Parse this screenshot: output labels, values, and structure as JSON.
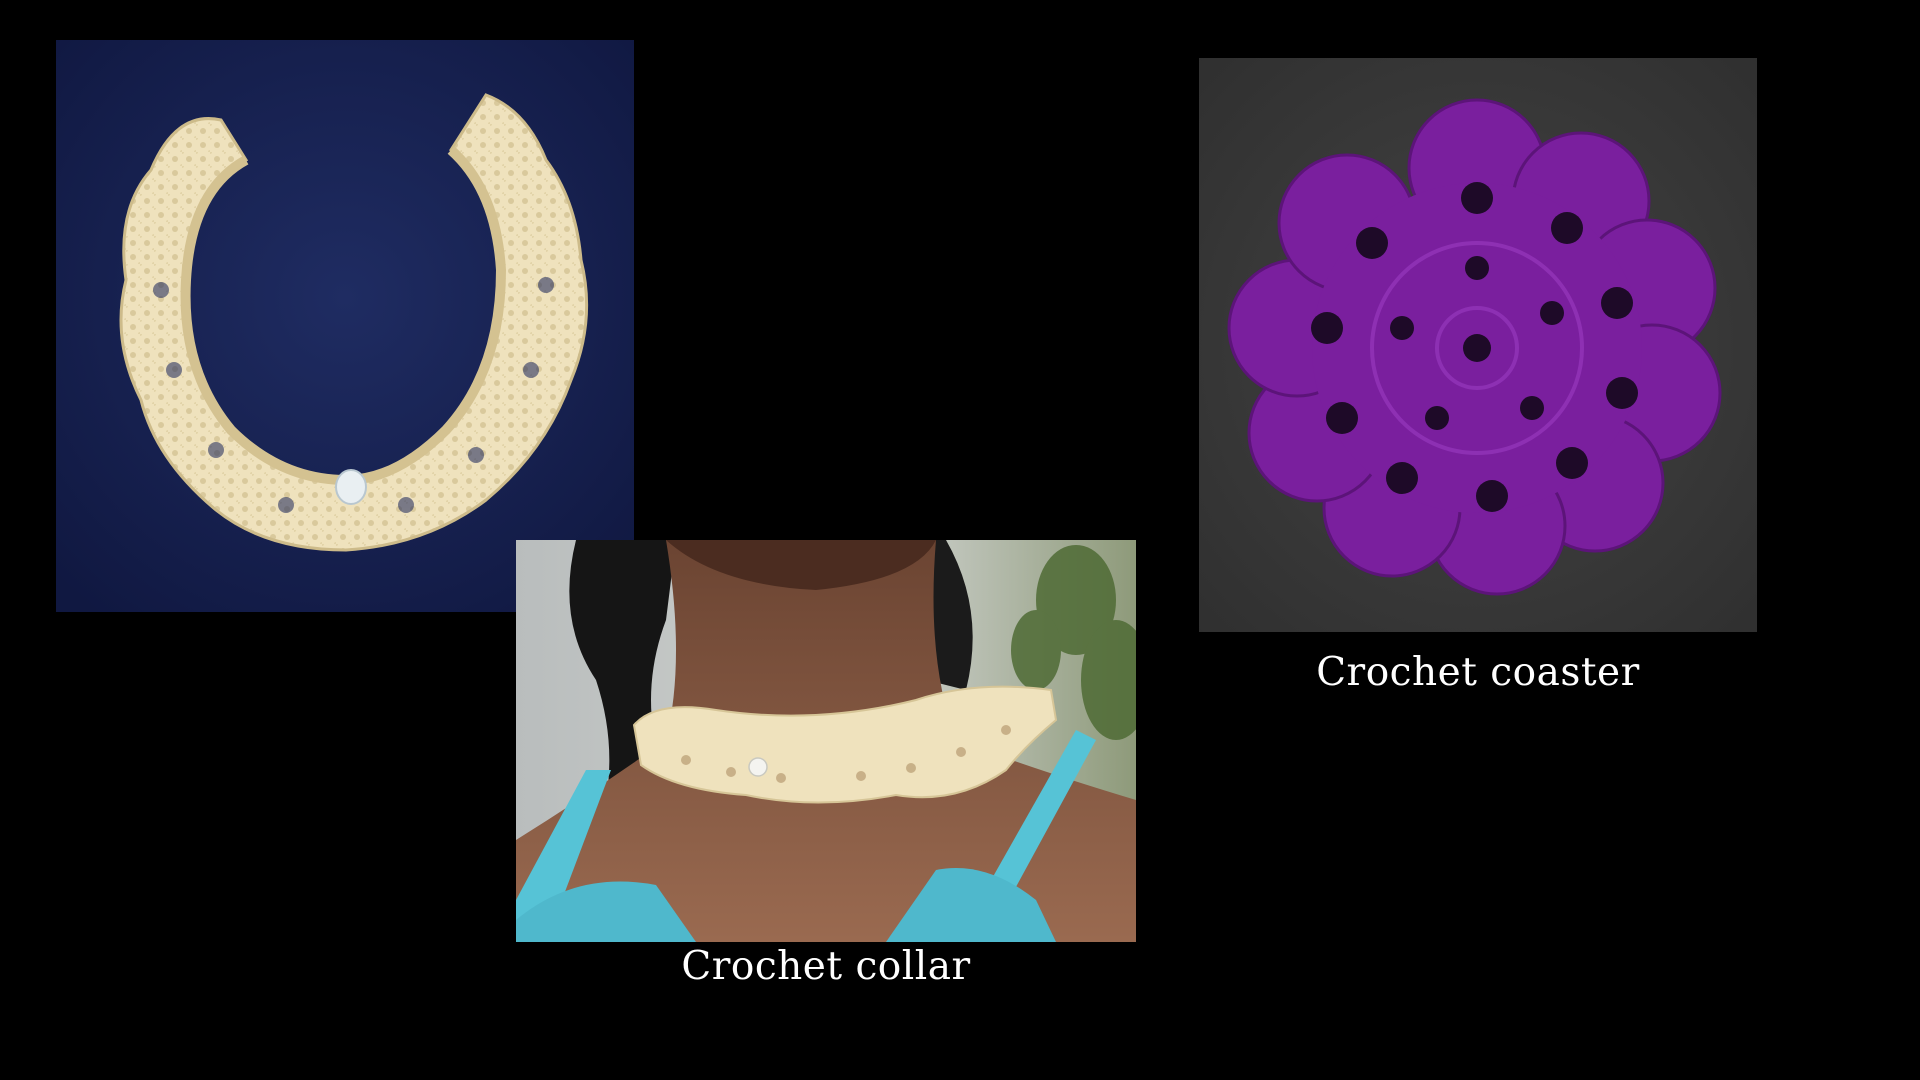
{
  "slide": {
    "background": "#000000",
    "captions": {
      "collar": "Crochet collar",
      "coaster": "Crochet coaster"
    },
    "photos": {
      "collar_flat": {
        "subject": "cream crochet collar laid flat with button",
        "background": "#16204a",
        "yarn": "#efe2bd"
      },
      "collar_worn": {
        "subject": "cream crochet collar worn around neck with turquoise top",
        "yarn": "#efe2bd",
        "top": "#56c3d6"
      },
      "coaster": {
        "subject": "purple flower crochet coaster",
        "background": "#3a3a3a",
        "yarn": "#7a1f9e"
      }
    }
  }
}
